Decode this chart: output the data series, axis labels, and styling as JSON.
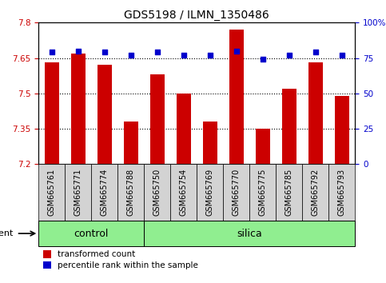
{
  "title": "GDS5198 / ILMN_1350486",
  "samples": [
    "GSM665761",
    "GSM665771",
    "GSM665774",
    "GSM665788",
    "GSM665750",
    "GSM665754",
    "GSM665769",
    "GSM665770",
    "GSM665775",
    "GSM665785",
    "GSM665792",
    "GSM665793"
  ],
  "red_values": [
    7.63,
    7.67,
    7.62,
    7.38,
    7.58,
    7.5,
    7.38,
    7.77,
    7.35,
    7.52,
    7.63,
    7.49
  ],
  "blue_values": [
    79,
    80,
    79,
    77,
    79,
    77,
    77,
    80,
    74,
    77,
    79,
    77
  ],
  "ylim_left": [
    7.2,
    7.8
  ],
  "ylim_right": [
    0,
    100
  ],
  "yticks_left": [
    7.2,
    7.35,
    7.5,
    7.65,
    7.8
  ],
  "yticks_right": [
    0,
    25,
    50,
    75,
    100
  ],
  "ytick_labels_left": [
    "7.2",
    "7.35",
    "7.5",
    "7.65",
    "7.8"
  ],
  "ytick_labels_right": [
    "0",
    "25",
    "50",
    "75",
    "100%"
  ],
  "bar_color": "#cc0000",
  "dot_color": "#0000cc",
  "grid_color": "#000000",
  "agent_label": "agent",
  "control_count": 4,
  "silica_count": 8,
  "groups": [
    {
      "label": "control",
      "start": 0,
      "end": 4,
      "color": "#90ee90"
    },
    {
      "label": "silica",
      "start": 4,
      "end": 12,
      "color": "#90ee90"
    }
  ],
  "legend_items": [
    {
      "color": "#cc0000",
      "label": "transformed count"
    },
    {
      "color": "#0000cc",
      "label": "percentile rank within the sample"
    }
  ],
  "title_fontsize": 10,
  "tick_fontsize": 7.5,
  "label_fontsize": 8,
  "sample_label_fontsize": 7
}
